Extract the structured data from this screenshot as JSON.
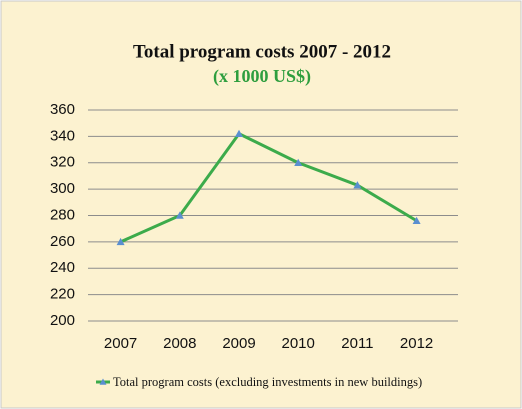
{
  "chart_data": {
    "type": "line",
    "title": "Total program costs 2007 - 2012",
    "subtitle": "(x 1000 US$)",
    "categories": [
      "2007",
      "2008",
      "2009",
      "2010",
      "2011",
      "2012"
    ],
    "series": [
      {
        "name": "Total program costs (excluding investments in new buildings)",
        "color": "#3cab4b",
        "marker_color": "#5a8fd0",
        "values": [
          260,
          280,
          342,
          320,
          303,
          276
        ]
      }
    ],
    "ylim": [
      200,
      360
    ],
    "yticks": [
      200,
      220,
      240,
      260,
      280,
      300,
      320,
      340,
      360
    ],
    "grid": true,
    "legend": "bottom"
  }
}
